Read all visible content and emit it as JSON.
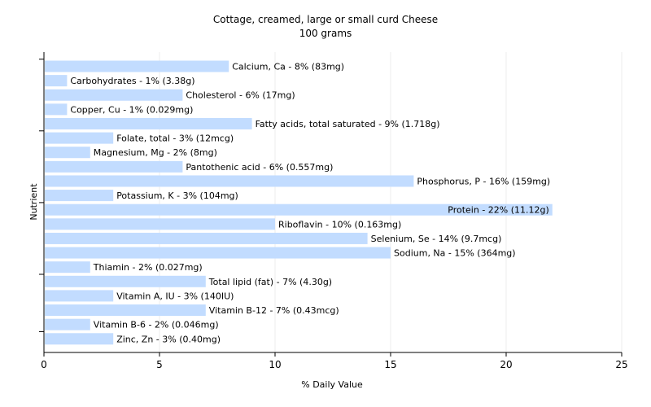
{
  "chart_data": {
    "type": "bar",
    "orientation": "horizontal",
    "title": "Cottage, creamed, large or small curd Cheese",
    "subtitle": "100 grams",
    "xlabel": "% Daily Value",
    "ylabel": "Nutrient",
    "xlim": [
      0,
      25
    ],
    "xticks": [
      0,
      5,
      10,
      15,
      20,
      25
    ],
    "grid": true,
    "bar_color": "#c2dcff",
    "categories": [
      "Calcium, Ca",
      "Carbohydrates",
      "Cholesterol",
      "Copper, Cu",
      "Fatty acids, total saturated",
      "Folate, total",
      "Magnesium, Mg",
      "Pantothenic acid",
      "Phosphorus, P",
      "Potassium, K",
      "Protein",
      "Riboflavin",
      "Selenium, Se",
      "Sodium, Na",
      "Thiamin",
      "Total lipid (fat)",
      "Vitamin A, IU",
      "Vitamin B-12",
      "Vitamin B-6",
      "Zinc, Zn"
    ],
    "values": [
      8,
      1,
      6,
      1,
      9,
      3,
      2,
      6,
      16,
      3,
      22,
      10,
      14,
      15,
      2,
      7,
      3,
      7,
      2,
      3
    ],
    "labels": [
      "Calcium, Ca - 8% (83mg)",
      "Carbohydrates - 1% (3.38g)",
      "Cholesterol - 6% (17mg)",
      "Copper, Cu - 1% (0.029mg)",
      "Fatty acids, total saturated - 9% (1.718g)",
      "Folate, total - 3% (12mcg)",
      "Magnesium, Mg - 2% (8mg)",
      "Pantothenic acid - 6% (0.557mg)",
      "Phosphorus, P - 16% (159mg)",
      "Potassium, K - 3% (104mg)",
      "Protein - 22% (11.12g)",
      "Riboflavin - 10% (0.163mg)",
      "Selenium, Se - 14% (9.7mcg)",
      "Sodium, Na - 15% (364mg)",
      "Thiamin - 2% (0.027mg)",
      "Total lipid (fat) - 7% (4.30g)",
      "Vitamin A, IU - 3% (140IU)",
      "Vitamin B-12 - 7% (0.43mcg)",
      "Vitamin B-6 - 2% (0.046mg)",
      "Zinc, Zn - 3% (0.40mg)"
    ]
  }
}
